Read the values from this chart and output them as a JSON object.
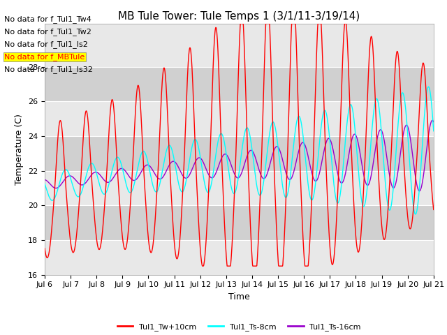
{
  "title": "MB Tule Tower: Tule Temps 1 (3/1/11-3/19/14)",
  "xlabel": "Time",
  "ylabel": "Temperature (C)",
  "ylim": [
    16,
    30.5
  ],
  "x_tick_labels": [
    "Jul 6",
    "Jul 7",
    "Jul 8",
    "Jul 9",
    "Jul 10",
    "Jul 11",
    "Jul 12",
    "Jul 13",
    "Jul 14",
    "Jul 15",
    "Jul 16",
    "Jul 17",
    "Jul 18",
    "Jul 19",
    "Jul 20",
    "Jul 21"
  ],
  "background_color": "#ffffff",
  "plot_bg_light": "#e8e8e8",
  "plot_bg_dark": "#d0d0d0",
  "grid_color": "#ffffff",
  "no_data_texts": [
    "No data for f_Tul1_Tw4",
    "No data for f_Tul1_Tw2",
    "No data for f_Tul1_Is2",
    "No data for f_MBTule",
    "No data for f_Tul1_Is32"
  ],
  "highlight_index": 3,
  "legend_entries": [
    {
      "label": "Tul1_Tw+10cm",
      "color": "#ff0000"
    },
    {
      "label": "Tul1_Ts-8cm",
      "color": "#00ffff"
    },
    {
      "label": "Tul1_Ts-16cm",
      "color": "#9900cc"
    }
  ],
  "series_colors": [
    "#ff0000",
    "#00ffff",
    "#9900cc"
  ],
  "title_fontsize": 11,
  "axis_fontsize": 9,
  "tick_fontsize": 8,
  "nodata_fontsize": 8
}
